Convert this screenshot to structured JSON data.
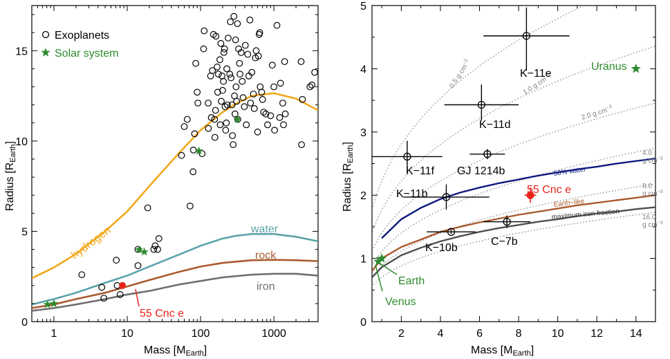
{
  "chart_data": [
    {
      "type": "scatter",
      "xscale": "log",
      "xlim": [
        0.5,
        4000
      ],
      "ylim": [
        0,
        17.5
      ],
      "xlabel_main": "Mass [M",
      "xlabel_sub": "Earth",
      "xlabel_end": "]",
      "ylabel_main": "Radius [R",
      "ylabel_sub": "Earth",
      "ylabel_end": "]",
      "xticks": [
        1,
        10,
        100,
        1000
      ],
      "xtick_labels": [
        "1",
        "10",
        "100",
        "1000"
      ],
      "yticks": [
        0,
        5,
        10,
        15
      ],
      "ytick_labels": [
        "0",
        "5",
        "10",
        "15"
      ],
      "legend": [
        {
          "label": "Exoplanets",
          "marker": "circle",
          "color": "#000000"
        },
        {
          "label": "Solar system",
          "marker": "star",
          "color": "#2e8b2e"
        }
      ],
      "exoplanets": [
        [
          2.4,
          2.6
        ],
        [
          4.5,
          1.9
        ],
        [
          4.8,
          1.3
        ],
        [
          7.1,
          3.4
        ],
        [
          7.3,
          2.0
        ],
        [
          8.0,
          1.5
        ],
        [
          14,
          3.1
        ],
        [
          14,
          4.0
        ],
        [
          19,
          6.3
        ],
        [
          23,
          4.0
        ],
        [
          24,
          4.2
        ],
        [
          26,
          4.0
        ],
        [
          27,
          4.6
        ],
        [
          55,
          9.2
        ],
        [
          60,
          10.8
        ],
        [
          66,
          11.2
        ],
        [
          72,
          6.4
        ],
        [
          79,
          8.3
        ],
        [
          80,
          9.5
        ],
        [
          83,
          10.4
        ],
        [
          86,
          14.3
        ],
        [
          90,
          12.7
        ],
        [
          92,
          12.1
        ],
        [
          105,
          9.3
        ],
        [
          110,
          15.1
        ],
        [
          112,
          16.1
        ],
        [
          127,
          12.1
        ],
        [
          128,
          10.7
        ],
        [
          137,
          13.6
        ],
        [
          140,
          11.3
        ],
        [
          145,
          13.9
        ],
        [
          150,
          15.9
        ],
        [
          155,
          11.2
        ],
        [
          157,
          10.2
        ],
        [
          160,
          11.7
        ],
        [
          162,
          15.8
        ],
        [
          168,
          14.1
        ],
        [
          171,
          12.7
        ],
        [
          175,
          13.7
        ],
        [
          183,
          14.5
        ],
        [
          185,
          10.9
        ],
        [
          189,
          15.4
        ],
        [
          192,
          12.2
        ],
        [
          196,
          13.6
        ],
        [
          200,
          12.8
        ],
        [
          205,
          13.3
        ],
        [
          208,
          14.9
        ],
        [
          212,
          15.1
        ],
        [
          216,
          11.9
        ],
        [
          220,
          10.6
        ],
        [
          225,
          11.0
        ],
        [
          228,
          14.0
        ],
        [
          232,
          12.0
        ],
        [
          238,
          15.7
        ],
        [
          250,
          13.7
        ],
        [
          255,
          16.6
        ],
        [
          260,
          13.5
        ],
        [
          268,
          12.0
        ],
        [
          272,
          10.3
        ],
        [
          278,
          9.8
        ],
        [
          285,
          16.9
        ],
        [
          290,
          12.5
        ],
        [
          295,
          11.5
        ],
        [
          300,
          15.6
        ],
        [
          305,
          13.0
        ],
        [
          310,
          12.2
        ],
        [
          318,
          16.5
        ],
        [
          322,
          11.2
        ],
        [
          330,
          15.1
        ],
        [
          340,
          14.3
        ],
        [
          345,
          13.7
        ],
        [
          358,
          14.9
        ],
        [
          370,
          13.3
        ],
        [
          380,
          12.4
        ],
        [
          395,
          11.9
        ],
        [
          408,
          15.3
        ],
        [
          420,
          10.9
        ],
        [
          440,
          14.8
        ],
        [
          455,
          13.6
        ],
        [
          470,
          16.7
        ],
        [
          480,
          12.1
        ],
        [
          500,
          13.8
        ],
        [
          525,
          12.6
        ],
        [
          540,
          11.8
        ],
        [
          560,
          14.6
        ],
        [
          572,
          15.0
        ],
        [
          600,
          10.5
        ],
        [
          615,
          14.7
        ],
        [
          630,
          15.9
        ],
        [
          640,
          16.0
        ],
        [
          650,
          13.0
        ],
        [
          680,
          12.7
        ],
        [
          700,
          12.3
        ],
        [
          725,
          11.6
        ],
        [
          775,
          11.5
        ],
        [
          820,
          10.9
        ],
        [
          900,
          11.4
        ],
        [
          950,
          14.2
        ],
        [
          1000,
          13.0
        ],
        [
          1020,
          10.6
        ],
        [
          1100,
          16.4
        ],
        [
          1200,
          11.3
        ],
        [
          1230,
          13.2
        ],
        [
          1320,
          12.1
        ],
        [
          1350,
          10.9
        ],
        [
          1400,
          14.4
        ],
        [
          1430,
          11.5
        ],
        [
          2350,
          14.4
        ],
        [
          2380,
          9.8
        ],
        [
          2450,
          12.3
        ],
        [
          3100,
          13.0
        ],
        [
          3300,
          13.1
        ],
        [
          3600,
          13.8
        ]
      ],
      "solar_system": [
        [
          0.82,
          0.95
        ],
        [
          1.0,
          1.0
        ],
        [
          14.5,
          3.98
        ],
        [
          17.1,
          3.86
        ],
        [
          95,
          9.45
        ],
        [
          318,
          11.2
        ]
      ],
      "models": [
        {
          "name": "hydrogen",
          "color": "#f2a81d",
          "points": [
            [
              0.5,
              2.4
            ],
            [
              1,
              3.0
            ],
            [
              2,
              3.75
            ],
            [
              5,
              5.0
            ],
            [
              10,
              6.1
            ],
            [
              20,
              7.5
            ],
            [
              50,
              9.3
            ],
            [
              100,
              10.6
            ],
            [
              200,
              11.6
            ],
            [
              300,
              12.05
            ],
            [
              500,
              12.5
            ],
            [
              1000,
              12.65
            ],
            [
              2000,
              12.35
            ],
            [
              4000,
              11.7
            ]
          ]
        },
        {
          "name": "water",
          "color": "#5aa3a8",
          "points": [
            [
              0.5,
              0.95
            ],
            [
              1,
              1.25
            ],
            [
              2,
              1.6
            ],
            [
              5,
              2.15
            ],
            [
              10,
              2.55
            ],
            [
              20,
              3.05
            ],
            [
              50,
              3.7
            ],
            [
              100,
              4.2
            ],
            [
              200,
              4.6
            ],
            [
              300,
              4.75
            ],
            [
              500,
              4.85
            ],
            [
              1000,
              4.85
            ],
            [
              2000,
              4.7
            ],
            [
              4000,
              4.45
            ]
          ]
        },
        {
          "name": "rock",
          "color": "#a95a2e",
          "points": [
            [
              0.5,
              0.75
            ],
            [
              1,
              0.95
            ],
            [
              2,
              1.25
            ],
            [
              5,
              1.6
            ],
            [
              10,
              1.95
            ],
            [
              20,
              2.3
            ],
            [
              50,
              2.75
            ],
            [
              100,
              3.05
            ],
            [
              200,
              3.25
            ],
            [
              500,
              3.4
            ],
            [
              1000,
              3.42
            ],
            [
              2000,
              3.4
            ],
            [
              4000,
              3.35
            ]
          ]
        },
        {
          "name": "iron",
          "color": "#6e6e6e",
          "points": [
            [
              0.5,
              0.6
            ],
            [
              1,
              0.75
            ],
            [
              2,
              0.95
            ],
            [
              5,
              1.25
            ],
            [
              10,
              1.5
            ],
            [
              20,
              1.7
            ],
            [
              50,
              2.05
            ],
            [
              100,
              2.25
            ],
            [
              200,
              2.45
            ],
            [
              500,
              2.6
            ],
            [
              1000,
              2.65
            ],
            [
              2000,
              2.65
            ],
            [
              4000,
              2.55
            ]
          ]
        }
      ],
      "highlight": {
        "label": "55 Cnc e",
        "x": 8.6,
        "y": 2.0,
        "color": "#e8221b"
      }
    },
    {
      "type": "scatter",
      "xlim": [
        0.5,
        15
      ],
      "ylim": [
        0,
        5
      ],
      "xlabel_main": "Mass [M",
      "xlabel_sub": "Earth",
      "xlabel_end": "]",
      "ylabel_main": "Radius [R",
      "ylabel_sub": "Earth",
      "ylabel_end": "]",
      "xticks": [
        2,
        4,
        6,
        8,
        10,
        12,
        14
      ],
      "xtick_labels": [
        "2",
        "4",
        "6",
        "8",
        "10",
        "12",
        "14"
      ],
      "yticks": [
        0,
        1,
        2,
        3,
        4,
        5
      ],
      "ytick_labels": [
        "0",
        "1",
        "2",
        "3",
        "4",
        "5"
      ],
      "planets": [
        {
          "label": "K−11e",
          "x": 8.4,
          "y": 4.52,
          "xerr": 2.2,
          "yerr_up": 0.45,
          "yerr_lo": 0.55
        },
        {
          "label": "K−11d",
          "x": 6.1,
          "y": 3.43,
          "xerr": 1.9,
          "yerr_up": 0.32,
          "yerr_lo": 0.25
        },
        {
          "label": "K−11f",
          "x": 2.3,
          "y": 2.61,
          "xerr": 1.8,
          "yerr_up": 0.25,
          "yerr_lo": 0.25
        },
        {
          "label": "GJ 1214b",
          "x": 6.4,
          "y": 2.65,
          "xerr": 0.9,
          "yerr_up": 0.08,
          "yerr_lo": 0.08
        },
        {
          "label": "K−11b",
          "x": 4.3,
          "y": 1.97,
          "xerr": 2.2,
          "yerr_up": 0.2,
          "yerr_lo": 0.2
        },
        {
          "label": "K−10b",
          "x": 4.55,
          "y": 1.42,
          "xerr": 1.25,
          "yerr_up": 0.03,
          "yerr_lo": 0.03
        },
        {
          "label": "C−7b",
          "x": 7.4,
          "y": 1.58,
          "xerr": 1.2,
          "yerr_up": 0.1,
          "yerr_lo": 0.1
        }
      ],
      "highlight": {
        "label": "55 Cnc e",
        "x": 8.6,
        "y": 2.0,
        "xerr": 0.3,
        "yerr": 0.12,
        "color": "#e8221b"
      },
      "solar_system": [
        {
          "label": "Uranus",
          "x": 14.0,
          "y": 4.0
        },
        {
          "label": "Earth",
          "x": 1.0,
          "y": 1.0
        },
        {
          "label": "Venus",
          "x": 0.82,
          "y": 0.95
        }
      ],
      "density_curves": [
        {
          "label": "0.5 g cm",
          "exp": "−3",
          "density": 0.5
        },
        {
          "label": "1.0 g cm",
          "exp": "−3",
          "density": 1.0
        },
        {
          "label": "2.0 g cm",
          "exp": "−3",
          "density": 2.0
        },
        {
          "label_line1": "4.0",
          "label_line2": "g cm",
          "exp": "−3",
          "density": 4.0
        },
        {
          "label_line1": "8.0",
          "label_line2": "g cm",
          "exp": "−3",
          "density": 8.0
        },
        {
          "label_line1": "16.0",
          "label_line2": "g cm",
          "exp": "−3",
          "density": 16.0
        }
      ],
      "models": [
        {
          "name": "50% water",
          "color": "#0e1a80",
          "points": [
            [
              1,
              1.32
            ],
            [
              2,
              1.62
            ],
            [
              3,
              1.8
            ],
            [
              4,
              1.94
            ],
            [
              5,
              2.04
            ],
            [
              6,
              2.12
            ],
            [
              7,
              2.19
            ],
            [
              8,
              2.25
            ],
            [
              9,
              2.31
            ],
            [
              10,
              2.36
            ],
            [
              11,
              2.41
            ],
            [
              12,
              2.45
            ],
            [
              13,
              2.5
            ],
            [
              14,
              2.54
            ],
            [
              15,
              2.58
            ]
          ]
        },
        {
          "name": "Earth−like",
          "color": "#a95a2e",
          "points": [
            [
              0.5,
              0.8
            ],
            [
              1,
              1.0
            ],
            [
              2,
              1.18
            ],
            [
              3,
              1.3
            ],
            [
              4,
              1.42
            ],
            [
              5,
              1.5
            ],
            [
              6,
              1.57
            ],
            [
              7,
              1.63
            ],
            [
              8,
              1.69
            ],
            [
              9,
              1.74
            ],
            [
              10,
              1.79
            ],
            [
              11,
              1.84
            ],
            [
              12,
              1.88
            ],
            [
              13,
              1.92
            ],
            [
              14,
              1.96
            ],
            [
              15,
              2.0
            ]
          ]
        },
        {
          "name": "maximum iron fraction",
          "color": "#505050",
          "points": [
            [
              0.5,
              0.7
            ],
            [
              1,
              0.86
            ],
            [
              2,
              1.05
            ],
            [
              3,
              1.17
            ],
            [
              4,
              1.27
            ],
            [
              5,
              1.35
            ],
            [
              6,
              1.42
            ],
            [
              7,
              1.48
            ],
            [
              8,
              1.53
            ],
            [
              9,
              1.58
            ],
            [
              10,
              1.62
            ],
            [
              11,
              1.67
            ],
            [
              12,
              1.71
            ],
            [
              13,
              1.74
            ],
            [
              14,
              1.78
            ],
            [
              15,
              1.81
            ]
          ]
        }
      ]
    }
  ]
}
